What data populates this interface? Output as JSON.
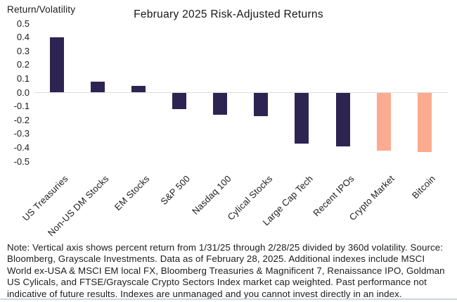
{
  "chart_data": {
    "type": "bar",
    "title": "February 2025 Risk-Adjusted Returns",
    "ylabel": "Return/Volatility",
    "xlabel": "",
    "categories": [
      "US Treasuries",
      "Non-US DM Stocks",
      "EM Stocks",
      "S&P 500",
      "Nasdaq 100",
      "Cylical Stocks",
      "Large Cap Tech",
      "Recent IPOs",
      "Crypto Market",
      "Bitcoin"
    ],
    "values": [
      0.4,
      0.08,
      0.05,
      -0.12,
      -0.16,
      -0.17,
      -0.37,
      -0.39,
      -0.42,
      -0.43
    ],
    "bar_colors": [
      "#2e2451",
      "#2e2451",
      "#2e2451",
      "#2e2451",
      "#2e2451",
      "#2e2451",
      "#2e2451",
      "#2e2451",
      "#fbab8f",
      "#fbab8f"
    ],
    "ylim": [
      -0.5,
      0.5
    ],
    "yticks": [
      0.5,
      0.4,
      0.3,
      0.2,
      0.1,
      0.0,
      -0.1,
      -0.2,
      -0.3,
      -0.4,
      -0.5
    ],
    "grid": false,
    "legend_position": "none",
    "note": "Note: Vertical axis shows percent return from 1/31/25 through 2/28/25 divided by 360d volatility. Source: Bloomberg, Grayscale Investments. Data as of February 28, 2025. Additional indexes include MSCI World ex-USA & MSCI EM local FX, Bloomberg Treasuries & Magnificent 7, Renaissance IPO, Goldman US Cylicals, and FTSE/Grayscale Crypto Sectors Index market cap weighted. Past performance not indicative of future results. Indexes are unmanaged and you cannot invest directly in an index."
  },
  "colors": {
    "bar_dark_navy": "#2e2451",
    "bar_salmon": "#fbab8f",
    "axis_line": "#dcdcdc",
    "text": "#1c1c1c",
    "bottom_divider": "#ccd7dd",
    "background": "#ffffff"
  }
}
